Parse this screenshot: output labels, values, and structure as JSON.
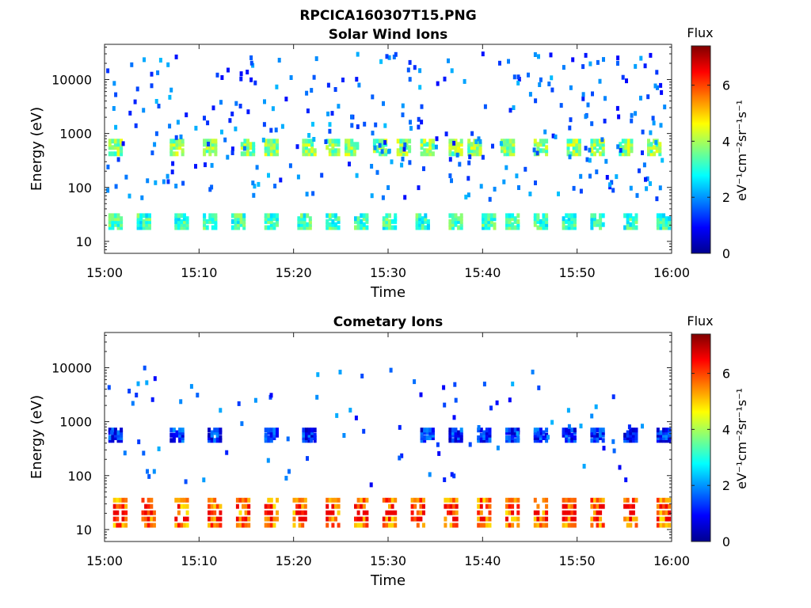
{
  "figure": {
    "filename": "RPCICA160307T15.PNG"
  },
  "chart_data": [
    {
      "type": "heatmap",
      "title": "Solar Wind Ions",
      "xlabel": "Time",
      "ylabel": "Energy (eV)",
      "x_ticks": [
        "15:00",
        "15:10",
        "15:20",
        "15:30",
        "15:40",
        "15:50",
        "16:00"
      ],
      "x_range": [
        "15:00",
        "16:00"
      ],
      "y_scale": "log",
      "y_ticks": [
        10,
        100,
        1000,
        10000
      ],
      "y_tick_labels": [
        "10",
        "100",
        "1000",
        "10000"
      ],
      "y_range": [
        6,
        45000
      ],
      "colorbar": {
        "title": "Flux",
        "unit": "eV⁻¹cm⁻²sr⁻¹s⁻¹",
        "range": [
          0,
          7.4
        ],
        "ticks": [
          0,
          2,
          4,
          6
        ]
      },
      "bands": [
        {
          "name": "low-energy band",
          "energy_range_eV": [
            18,
            30
          ],
          "flux_typical": 3.2,
          "times_min": [
            1,
            4,
            8,
            11,
            14,
            17.5,
            21,
            24,
            27,
            30,
            33.5,
            37,
            40.5,
            43,
            46,
            49,
            52,
            55.5,
            59
          ]
        },
        {
          "name": "solar-wind band",
          "energy_range_eV": [
            420,
            720
          ],
          "flux_typical": 3.8,
          "times_min": [
            1,
            7.5,
            11,
            15,
            17.5,
            21.5,
            24,
            26,
            29,
            31.5,
            34,
            37,
            39,
            42.5,
            46,
            49.5,
            52,
            55,
            58
          ]
        },
        {
          "name": "scattered counts",
          "energy_range_eV": [
            60,
            30000
          ],
          "flux_typical": 1.5
        }
      ]
    },
    {
      "type": "heatmap",
      "title": "Cometary Ions",
      "xlabel": "Time",
      "ylabel": "Energy (eV)",
      "x_ticks": [
        "15:00",
        "15:10",
        "15:20",
        "15:30",
        "15:40",
        "15:50",
        "16:00"
      ],
      "x_range": [
        "15:00",
        "16:00"
      ],
      "y_scale": "log",
      "y_ticks": [
        10,
        100,
        1000,
        10000
      ],
      "y_tick_labels": [
        "10",
        "100",
        "1000",
        "10000"
      ],
      "y_range": [
        6,
        45000
      ],
      "colorbar": {
        "title": "Flux",
        "unit": "eV⁻¹cm⁻²sr⁻¹s⁻¹",
        "range": [
          0,
          7.4
        ],
        "ticks": [
          0,
          2,
          4,
          6
        ]
      },
      "bands": [
        {
          "name": "cometary band",
          "energy_range_eV": [
            12,
            35
          ],
          "flux_typical": 5.6,
          "peak_flux": 6.6,
          "times_min": [
            1.5,
            4.5,
            8,
            11.5,
            14.5,
            17.5,
            20.5,
            24,
            27,
            30,
            33,
            36.5,
            40,
            43,
            46,
            49,
            52,
            55.5,
            59
          ]
        },
        {
          "name": "upper band",
          "energy_range_eV": [
            450,
            700
          ],
          "flux_typical": 1.2,
          "times_min": [
            1,
            7.5,
            11.5,
            17.5,
            21.5,
            34,
            37,
            40,
            43,
            46,
            49,
            52,
            55.5,
            59
          ]
        },
        {
          "name": "scattered counts",
          "energy_range_eV": [
            60,
            10000
          ],
          "flux_typical": 1.4
        }
      ]
    }
  ]
}
